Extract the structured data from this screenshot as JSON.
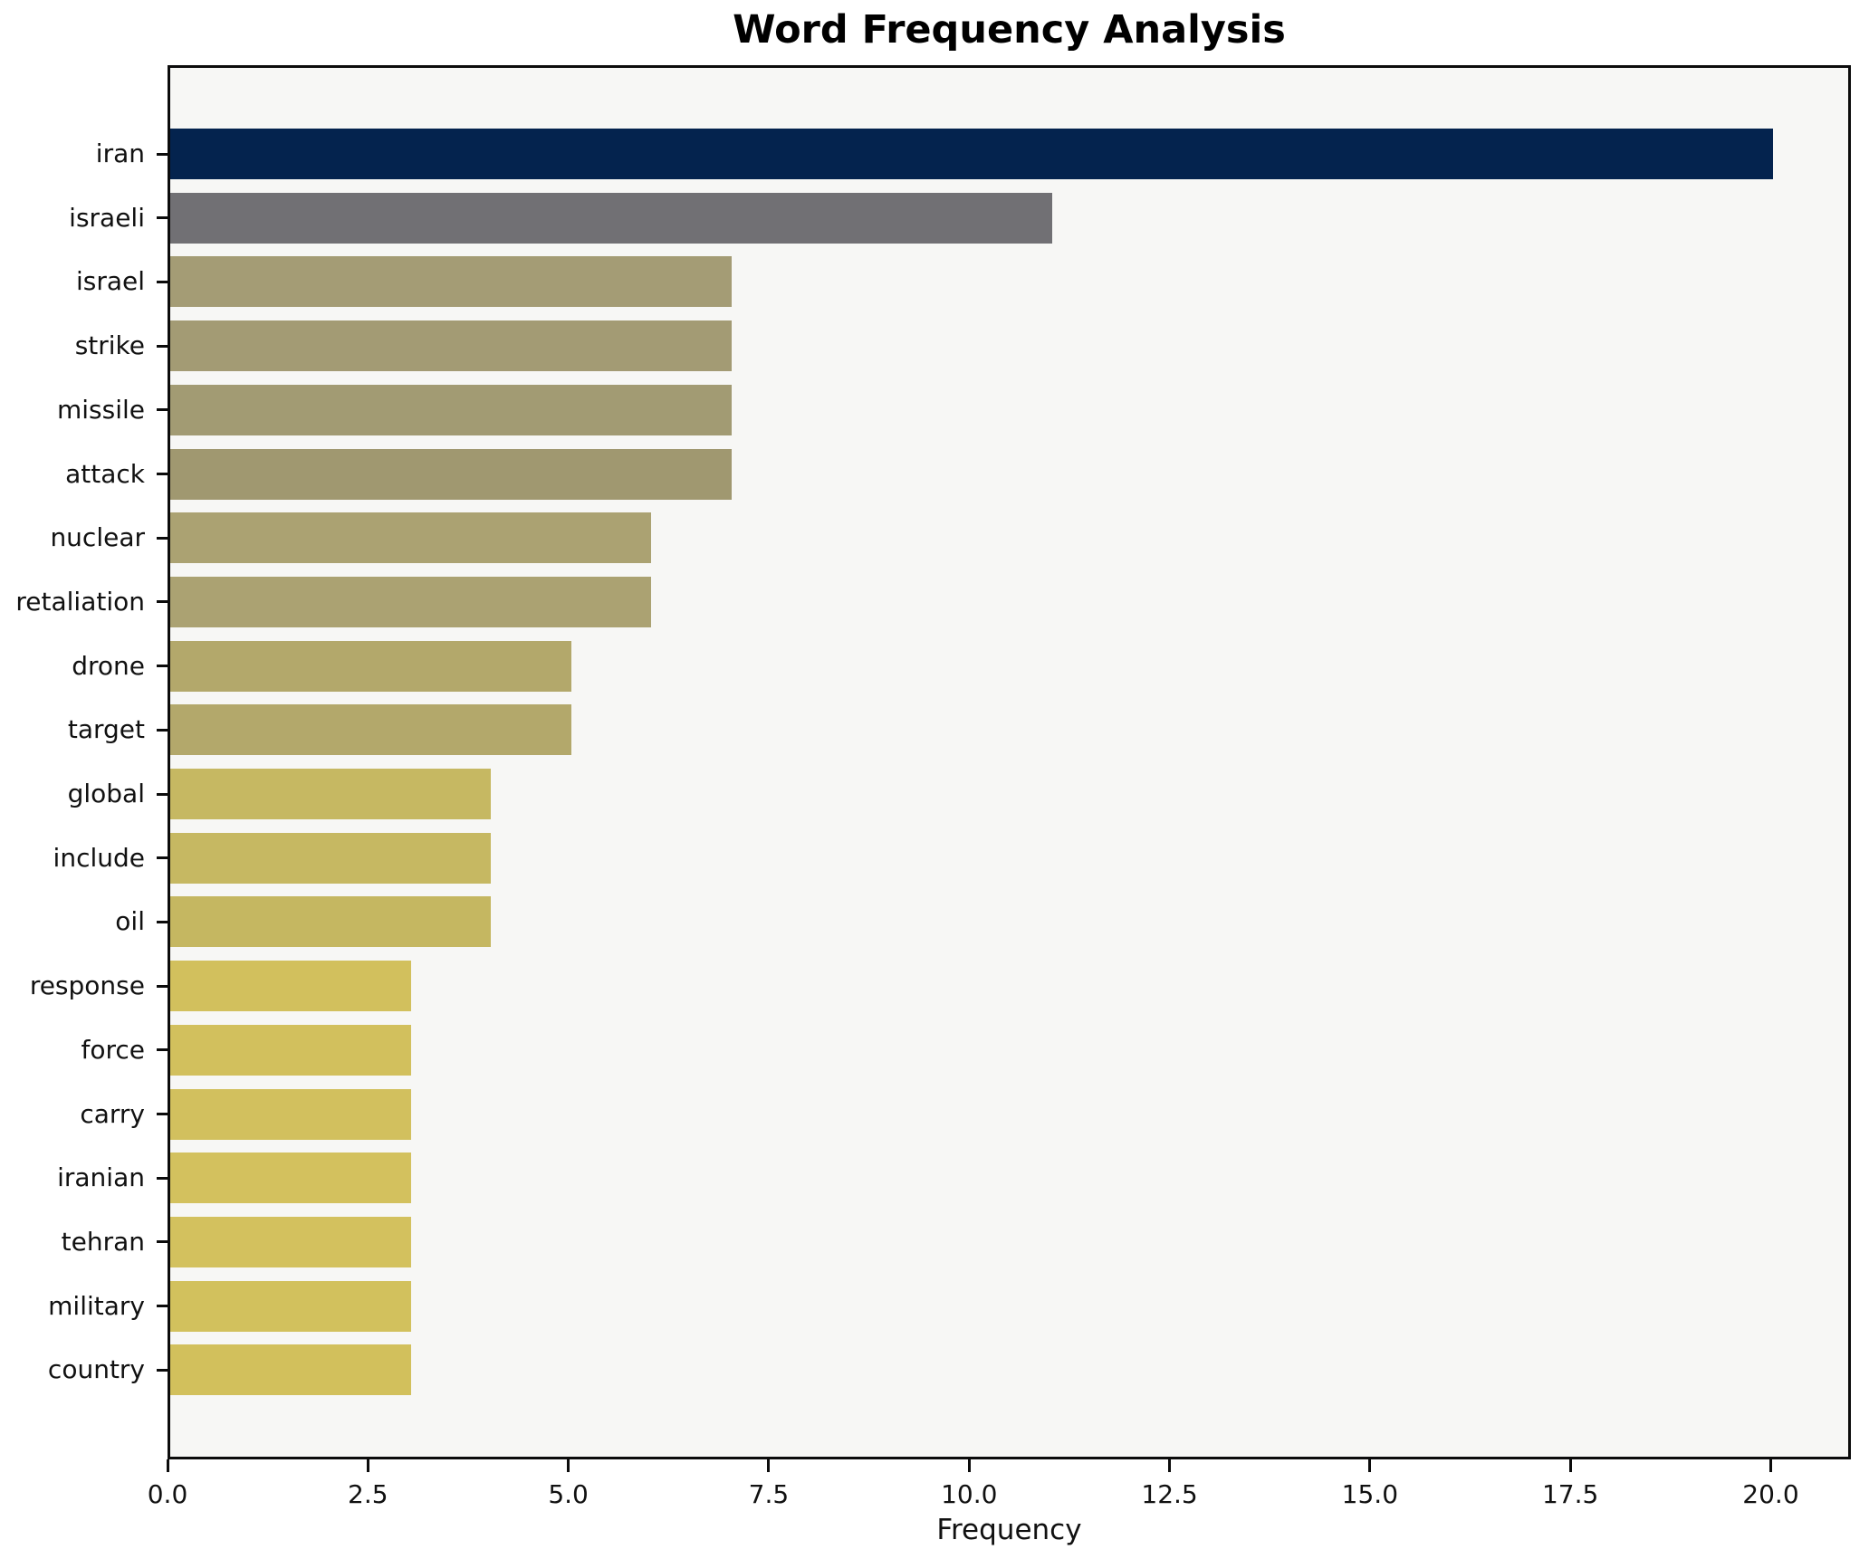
{
  "chart_data": {
    "type": "bar",
    "orientation": "horizontal",
    "title": "Word Frequency Analysis",
    "xlabel": "Frequency",
    "ylabel": "",
    "categories": [
      "iran",
      "israeli",
      "israel",
      "strike",
      "missile",
      "attack",
      "nuclear",
      "retaliation",
      "drone",
      "target",
      "global",
      "include",
      "oil",
      "response",
      "force",
      "carry",
      "iranian",
      "tehran",
      "military",
      "country"
    ],
    "values": [
      20,
      11,
      7,
      7,
      7,
      7,
      6,
      6,
      5,
      5,
      4,
      4,
      4,
      3,
      3,
      3,
      3,
      3,
      3,
      3
    ],
    "bar_colors": [
      "#04234e",
      "#717074",
      "#a49c75",
      "#a39b74",
      "#a29b73",
      "#a09870",
      "#aba272",
      "#aba272",
      "#b3a86b",
      "#b3a86b",
      "#c6b862",
      "#c6b862",
      "#c5b761",
      "#d2c05d",
      "#d2c05d",
      "#d2c05e",
      "#d3c15e",
      "#d3c15e",
      "#d2c15d",
      "#d2c05c"
    ],
    "xlim": [
      0,
      21
    ],
    "xticks": [
      0.0,
      2.5,
      5.0,
      7.5,
      10.0,
      12.5,
      15.0,
      17.5,
      20.0
    ],
    "xtick_labels": [
      "0.0",
      "2.5",
      "5.0",
      "7.5",
      "10.0",
      "12.5",
      "15.0",
      "17.5",
      "20.0"
    ],
    "grid": false,
    "legend": null,
    "plot_bg_color": "#f7f7f5",
    "figure_bg_color": "#ffffff",
    "spine_color": "#0c0c0c"
  }
}
